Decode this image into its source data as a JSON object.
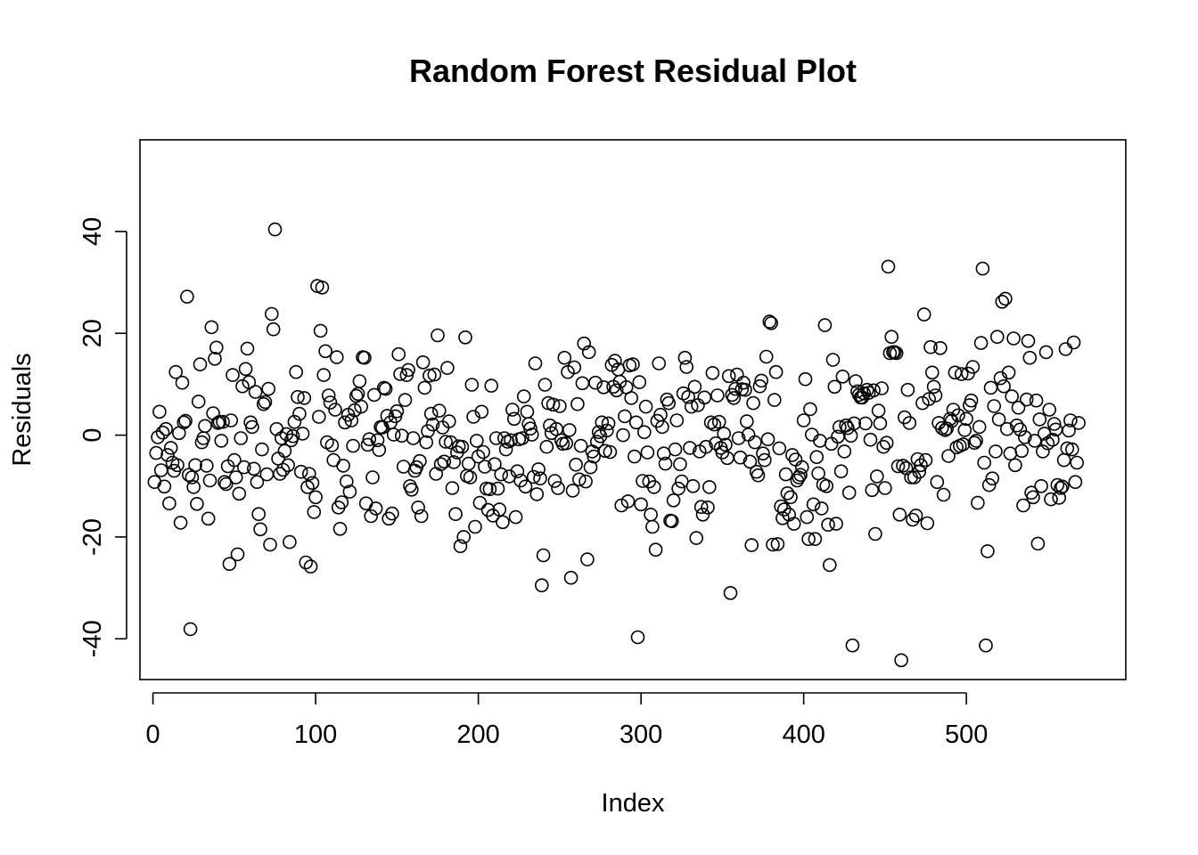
{
  "chart_data": {
    "type": "scatter",
    "title": "Random Forest Residual Plot",
    "xlabel": "Index",
    "ylabel": "Residuals",
    "xlim": [
      -8,
      598
    ],
    "ylim": [
      -48,
      58
    ],
    "xticks": [
      0,
      100,
      200,
      300,
      400,
      500
    ],
    "yticks": [
      -40,
      -20,
      0,
      20,
      40
    ],
    "xtick_labels": [
      "0",
      "100",
      "200",
      "300",
      "400",
      "500"
    ],
    "ytick_labels": [
      "-40",
      "-20",
      "0",
      "20",
      "40"
    ],
    "marker": "open-circle",
    "grid": false,
    "legend": "none",
    "series": [
      {
        "x": [
          1,
          2,
          3,
          4,
          5,
          6,
          7,
          8,
          9,
          10,
          11,
          12,
          13,
          14,
          15,
          16,
          17,
          18,
          19,
          20,
          21,
          22,
          23,
          24,
          25,
          26,
          27,
          28,
          29,
          30,
          31,
          32,
          33,
          34,
          35,
          36,
          37,
          38,
          39,
          40,
          41,
          42,
          43,
          44,
          45,
          46,
          47,
          48,
          49,
          50,
          51,
          52,
          53,
          54,
          55,
          56,
          57,
          58,
          59,
          60,
          61,
          62,
          63,
          64,
          65,
          66,
          67,
          68,
          69,
          70,
          71,
          72,
          73,
          74,
          75,
          76,
          77,
          78,
          79,
          80,
          81,
          82,
          83,
          84,
          85,
          86,
          87,
          88,
          89,
          90,
          91,
          92,
          93,
          94,
          95,
          96,
          97,
          98,
          99,
          100,
          101,
          102,
          103,
          104,
          105,
          106,
          107,
          108,
          109,
          110,
          111,
          112,
          113,
          114,
          115,
          116,
          117,
          118,
          119,
          120,
          121,
          122,
          123,
          124,
          125,
          126,
          127,
          128,
          129,
          130,
          131,
          132,
          133,
          134,
          135,
          136,
          137,
          138,
          139,
          140,
          141,
          142,
          143,
          144,
          145,
          146,
          147,
          148,
          149,
          150,
          151,
          152,
          153,
          154,
          155,
          156,
          157,
          158,
          159,
          160,
          161,
          162,
          163,
          164,
          165,
          166,
          167,
          168,
          169,
          170,
          171,
          172,
          173,
          174,
          175,
          176,
          177,
          178,
          179,
          180,
          181,
          182,
          183,
          184,
          185,
          186,
          187,
          188,
          189,
          190,
          191,
          192,
          193,
          194,
          195,
          196,
          197,
          198,
          199,
          200,
          201,
          202,
          203,
          204,
          205,
          206,
          207,
          208,
          209,
          210,
          211,
          212,
          213,
          214,
          215,
          216,
          217,
          218,
          219,
          220,
          221,
          222,
          223,
          224,
          225,
          226,
          227,
          228,
          229,
          230,
          231,
          232,
          233,
          234,
          235,
          236,
          237,
          238,
          239,
          240,
          241,
          242,
          243,
          244,
          245,
          246,
          247,
          248,
          249,
          250,
          251,
          252,
          253,
          254,
          255,
          256,
          257,
          258,
          259,
          260,
          261,
          262,
          263,
          264,
          265,
          266,
          267,
          268,
          269,
          270,
          271,
          272,
          273,
          274,
          275,
          276,
          277,
          278,
          279,
          280,
          281,
          282,
          283,
          284,
          285,
          286,
          287,
          288,
          289,
          290,
          291,
          292,
          293,
          294,
          295,
          296,
          297,
          298,
          299,
          300,
          301,
          302,
          303,
          304,
          305,
          306,
          307,
          308,
          309,
          310,
          311,
          312,
          313,
          314,
          315,
          316,
          317,
          318,
          319,
          320,
          321,
          322,
          323,
          324,
          325,
          326,
          327,
          328,
          329,
          330,
          331,
          332,
          333,
          334,
          335,
          336,
          337,
          338,
          339,
          340,
          341,
          342,
          343,
          344,
          345,
          346,
          347,
          348,
          349,
          350,
          351,
          352,
          353,
          354,
          355,
          356,
          357,
          358,
          359,
          360,
          361,
          362,
          363,
          364,
          365,
          366,
          367,
          368,
          369,
          370,
          371,
          372,
          373,
          374,
          375,
          376,
          377,
          378,
          379,
          380,
          381,
          382,
          383,
          384,
          385,
          386,
          387,
          388,
          389,
          390,
          391,
          392,
          393,
          394,
          395,
          396,
          397,
          398,
          399,
          400,
          401,
          402,
          403,
          404,
          405,
          406,
          407,
          408,
          409,
          410,
          411,
          412,
          413,
          414,
          415,
          416,
          417,
          418,
          419,
          420,
          421,
          422,
          423,
          424,
          425,
          426,
          427,
          428,
          429,
          430,
          431,
          432,
          433,
          434,
          435,
          436,
          437,
          438,
          439,
          440,
          441,
          442,
          443,
          444,
          445,
          446,
          447,
          448,
          449,
          450,
          451,
          452,
          453,
          454,
          455,
          456,
          457,
          458,
          459,
          460,
          461,
          462,
          463,
          464,
          465,
          466,
          467,
          468,
          469,
          470,
          471,
          472,
          473,
          474,
          475,
          476,
          477,
          478,
          479,
          480,
          481,
          482,
          483,
          484,
          485,
          486,
          487,
          488,
          489,
          490,
          491,
          492,
          493,
          494,
          495,
          496,
          497,
          498,
          499,
          500,
          501,
          502,
          503,
          504,
          505,
          506,
          507,
          508,
          509,
          510,
          511,
          512,
          513,
          514,
          515,
          516,
          517,
          518,
          519,
          520,
          521,
          522,
          523,
          524,
          525,
          526,
          527,
          528,
          529,
          530,
          531,
          532,
          533,
          534,
          535,
          536,
          537,
          538,
          539,
          540,
          541,
          542,
          543,
          544,
          545,
          546,
          547,
          548,
          549,
          550,
          551,
          552,
          553,
          554,
          555,
          556,
          557,
          558,
          559,
          560,
          561,
          562,
          563,
          564,
          565,
          566,
          567,
          568,
          569
        ],
        "y": [
          -9.2,
          -3.5,
          -0.4,
          4.6,
          -6.9,
          0.5,
          -10.1,
          1.2,
          -3.9,
          -13.4,
          -2.5,
          -5.4,
          -7.0,
          12.4,
          -5.9,
          0.4,
          -17.2,
          10.3,
          2.5,
          2.8,
          27.2,
          -7.8,
          -38.1,
          -8.3,
          -10.2,
          -5.9,
          -13.5,
          6.6,
          13.9,
          -1.4,
          -0.6,
          1.8,
          -6.0,
          -16.4,
          -8.9,
          21.2,
          4.3,
          15.0,
          17.2,
          2.4,
          2.6,
          -1.1,
          2.6,
          -9.2,
          -9.6,
          -6.1,
          -25.3,
          2.9,
          11.8,
          -4.9,
          -8.3,
          -23.4,
          -11.5,
          -0.6,
          9.6,
          -6.3,
          13.0,
          17.0,
          10.4,
          2.5,
          1.6,
          -6.6,
          8.5,
          -9.2,
          -15.5,
          -18.5,
          -2.8,
          6.1,
          6.5,
          -7.7,
          9.1,
          -21.5,
          23.8,
          20.8,
          40.4,
          1.2,
          -4.6,
          -7.6,
          -0.6,
          -6.8,
          -3.1,
          0.2,
          -5.9,
          -21.0,
          -1.0,
          -0.2,
          2.6,
          12.4,
          7.5,
          4.2,
          -7.2,
          0.3,
          7.3,
          -25.0,
          -10.2,
          -7.6,
          -25.8,
          -9.4,
          -15.1,
          -12.2,
          29.3,
          3.6,
          20.5,
          29.0,
          11.8,
          16.5,
          -1.4,
          7.8,
          6.4,
          -2.0,
          -4.9,
          5.0,
          15.3,
          -14.2,
          -18.4,
          -13.2,
          -6.0,
          2.5,
          -9.1,
          4.0,
          -11.1,
          2.9,
          -2.1,
          4.9,
          7.7,
          8.1,
          10.6,
          5.6,
          15.3,
          15.2,
          -13.4,
          -1.9,
          -0.8,
          -15.9,
          -8.3,
          7.9,
          -14.4,
          -1.0,
          -2.9,
          1.6,
          1.5,
          9.3,
          9.1,
          3.8,
          -16.4,
          2.5,
          -15.4,
          0.1,
          3.7,
          4.7,
          15.9,
          12.0,
          -0.1,
          -6.2,
          6.9,
          11.8,
          12.8,
          -10.0,
          -10.7,
          -0.6,
          -7.0,
          -6.3,
          -14.2,
          -5.1,
          -15.9,
          14.3,
          9.3,
          -1.4,
          0.8,
          11.7,
          4.2,
          2.1,
          11.9,
          -7.6,
          19.6,
          4.8,
          -5.7,
          1.5,
          -5.2,
          -1.3,
          13.2,
          2.7,
          -1.4,
          -10.4,
          -5.3,
          -15.5,
          -3.4,
          -2.2,
          -21.8,
          -2.3,
          -20.0,
          19.2,
          -8.0,
          -5.6,
          -8.3,
          9.9,
          3.6,
          -18.0,
          -1.1,
          -4.2,
          -13.3,
          4.6,
          -3.3,
          -6.2,
          -10.5,
          -14.7,
          -10.6,
          9.7,
          -15.8,
          -5.7,
          -0.6,
          -10.5,
          -14.6,
          -7.7,
          -17.1,
          -0.6,
          -2.8,
          -1.3,
          -8.1,
          -1.0,
          5.0,
          3.2,
          -16.1,
          -7.1,
          -0.8,
          -8.9,
          -0.6,
          7.6,
          -10.1,
          4.6,
          2.2,
          1.3,
          0.1,
          -8.2,
          14.1,
          -11.6,
          -6.7,
          -8.5,
          -29.5,
          -23.6,
          9.9,
          -2.3,
          6.3,
          1.9,
          0.4,
          6.0,
          -9.0,
          1.2,
          -10.4,
          5.7,
          -1.0,
          -1.7,
          15.2,
          -1.6,
          12.4,
          1.0,
          -28.0,
          -10.9,
          13.3,
          -5.8,
          6.1,
          -8.7,
          -2.1,
          10.2,
          18.0,
          -9.1,
          -24.4,
          16.3,
          -6.3,
          -3.2,
          -4.2,
          10.3,
          -1.3,
          0.6,
          -0.2,
          2.5,
          9.4,
          -3.1,
          0.9,
          2.3,
          -3.3,
          13.8,
          9.5,
          14.6,
          8.8,
          12.9,
          10.5,
          -13.8,
          0.0,
          3.7,
          9.4,
          -13.0,
          13.7,
          7.3,
          13.9,
          -4.2,
          2.5,
          -39.7,
          10.4,
          -13.6,
          -9.0,
          0.6,
          5.6,
          -3.4,
          -9.1,
          -15.6,
          -18.0,
          -10.2,
          -22.5,
          2.8,
          14.1,
          4.0,
          1.6,
          -3.6,
          -5.6,
          7.0,
          6.3,
          -16.8,
          -16.9,
          -12.8,
          -2.8,
          2.9,
          -10.5,
          -5.7,
          -9.1,
          8.2,
          15.2,
          13.4,
          7.5,
          -2.5,
          5.6,
          -10.0,
          9.5,
          -20.2,
          5.9,
          -3.2,
          -14.1,
          -15.6,
          7.4,
          -2.3,
          -14.2,
          -10.2,
          2.5,
          12.2,
          2.1,
          -1.6,
          7.8,
          2.6,
          -2.5,
          -3.4,
          0.3,
          -1.9,
          -4.5,
          11.6,
          -31.0,
          7.9,
          7.3,
          9.1,
          11.9,
          -0.6,
          -4.4,
          9.0,
          10.3,
          8.9,
          2.7,
          0.1,
          -5.2,
          -21.6,
          6.3,
          -1.4,
          -7.2,
          -7.9,
          9.6,
          10.7,
          -3.6,
          -4.9,
          15.4,
          -0.8,
          22.3,
          22.0,
          -21.5,
          6.9,
          12.4,
          -21.4,
          -2.6,
          -14.0,
          -16.3,
          -14.6,
          -7.7,
          -11.4,
          -15.6,
          -12.2,
          -3.9,
          -17.4,
          -4.8,
          -8.9,
          -8.3,
          -7.8,
          -6.3,
          2.9,
          11.0,
          -16.1,
          -20.4,
          5.1,
          0.1,
          -13.6,
          -20.4,
          -4.3,
          -7.5,
          -1.1,
          -14.4,
          -9.7,
          21.6,
          -10.0,
          -17.6,
          -25.5,
          -1.7,
          14.8,
          9.5,
          -17.4,
          -0.3,
          1.6,
          -7.1,
          11.5,
          -3.2,
          1.9,
          1.4,
          -11.3,
          -0.1,
          -41.3,
          2.3,
          10.6,
          8.6,
          7.9,
          7.4,
          7.4,
          8.2,
          2.3,
          8.9,
          8.3,
          -0.9,
          -10.8,
          8.8,
          -19.4,
          -8.1,
          4.8,
          2.3,
          9.2,
          -2.3,
          -10.4,
          -1.5,
          33.1,
          16.1,
          19.3,
          16.3,
          16.3,
          16.1,
          -6.1,
          -15.6,
          -44.2,
          -6.0,
          3.5,
          -6.5,
          8.9,
          2.4,
          -8.3,
          -16.6,
          -8.3,
          -15.8,
          -4.7,
          -7.2,
          -5.9,
          6.3,
          23.7,
          -4.9,
          -17.3,
          7.1,
          17.3,
          12.3,
          9.5,
          7.8,
          -9.2,
          2.4,
          17.1,
          1.4,
          -11.7,
          1.0,
          1.3,
          -4.1,
          3.2,
          2.8,
          5.0,
          12.3,
          -2.4,
          3.9,
          -2.1,
          12.0,
          -1.8,
          1.0,
          3.2,
          12.1,
          5.9,
          6.8,
          13.4,
          -1.5,
          -1.1,
          -13.3,
          1.6,
          18.1,
          32.7,
          -5.4,
          -41.3,
          -22.8,
          -9.8,
          9.3,
          -8.5,
          5.7,
          -3.2,
          19.3,
          3.1,
          11.2,
          26.2,
          9.6,
          26.8,
          1.2,
          12.3,
          -3.6,
          7.6,
          19.0,
          -5.9,
          1.9,
          5.4,
          1.1,
          -3.1,
          -13.8,
          -0.4,
          7.0,
          18.5,
          15.2,
          -11.3,
          -12.2,
          -1.1,
          6.8,
          -21.3,
          3.1,
          -10.0,
          -3.2,
          0.3,
          16.3,
          -1.6,
          5.0,
          -12.6,
          -0.9,
          2.2,
          1.1,
          -9.8,
          -12.3,
          -10.4,
          -10.1,
          -4.9,
          16.9,
          -2.6,
          0.9,
          2.9,
          -2.8,
          18.2,
          -9.2,
          -5.4,
          2.4
        ]
      }
    ]
  }
}
